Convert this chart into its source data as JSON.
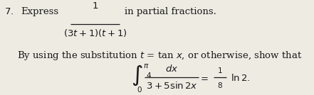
{
  "background_color": "#eeebe3",
  "text_color": "#1a1a1a",
  "figsize": [
    4.41,
    1.34
  ],
  "dpi": 100,
  "base_fs": 9.5,
  "small_fs": 7.5,
  "integral_fs": 16
}
